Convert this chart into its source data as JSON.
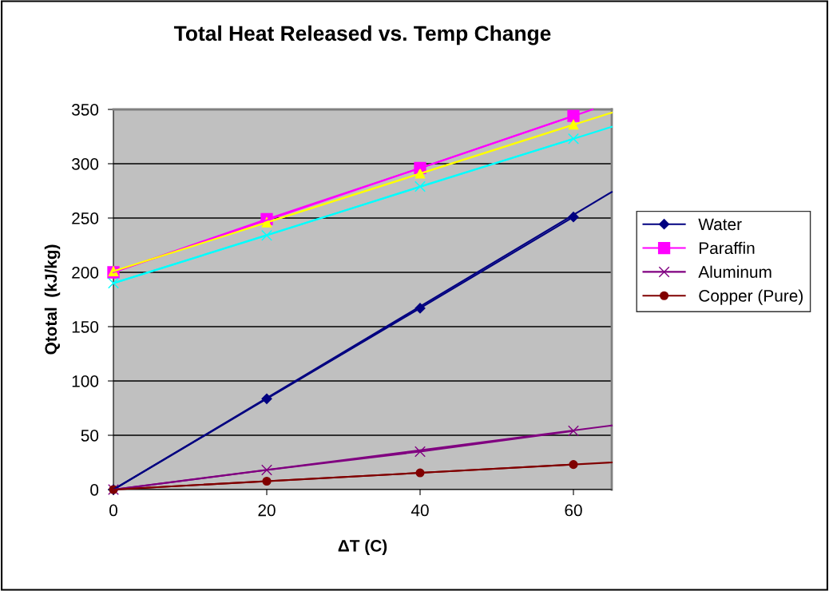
{
  "chart_data": {
    "type": "line",
    "title": "Total Heat Released vs. Temp Change",
    "xlabel": "ΔT (C)",
    "ylabel": "Qtotal  (kJ/kg)",
    "x": [
      0,
      20,
      40,
      60
    ],
    "xlim": [
      0,
      65
    ],
    "xticks": [
      0,
      20,
      40,
      60
    ],
    "ylim": [
      0,
      350
    ],
    "yticks": [
      0,
      50,
      100,
      150,
      200,
      250,
      300,
      350
    ],
    "grid": "y",
    "legend": "right",
    "series": [
      {
        "name": "Water",
        "color": "#000080",
        "marker": "diamond",
        "values": [
          0,
          83.6,
          167,
          251
        ]
      },
      {
        "name": "Paraffin",
        "color": "#ff00ff",
        "marker": "square",
        "values": [
          200,
          249,
          296,
          344
        ]
      },
      {
        "color": "#ffff00",
        "marker": "triangle",
        "values": [
          201,
          246,
          291,
          336
        ]
      },
      {
        "color": "#00ffff",
        "marker": "cross",
        "values": [
          190,
          234,
          279,
          323
        ]
      },
      {
        "name": "Aluminum",
        "color": "#800080",
        "marker": "cross",
        "values": [
          0,
          18,
          35,
          54
        ]
      },
      {
        "name": "Copper (Pure)",
        "color": "#800000",
        "marker": "circle",
        "values": [
          0,
          7.7,
          15.4,
          23.1
        ]
      },
      {
        "color": "#000080",
        "marker": "none",
        "x": [
          0,
          65
        ],
        "values": [
          0,
          274
        ]
      },
      {
        "color": "#ff00ff",
        "marker": "none",
        "x": [
          0,
          62.5
        ],
        "values": [
          200,
          350
        ]
      },
      {
        "color": "#ffff00",
        "marker": "none",
        "x": [
          0,
          65
        ],
        "values": [
          201,
          347
        ]
      },
      {
        "color": "#00ffff",
        "marker": "none",
        "x": [
          0,
          65
        ],
        "values": [
          190,
          334
        ]
      },
      {
        "color": "#800080",
        "marker": "none",
        "x": [
          0,
          65
        ],
        "values": [
          0,
          59
        ]
      },
      {
        "color": "#800000",
        "marker": "none",
        "x": [
          0,
          65
        ],
        "values": [
          0,
          25
        ]
      }
    ]
  }
}
